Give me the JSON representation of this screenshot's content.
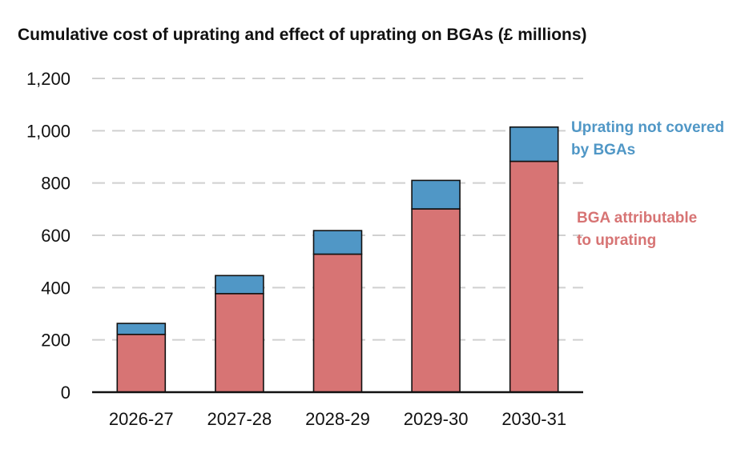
{
  "chart_data": {
    "type": "bar",
    "stacked": true,
    "title": "Cumulative cost of uprating and effect of uprating on BGAs (£ millions)",
    "xlabel": "",
    "ylabel": "",
    "categories": [
      "2026-27",
      "2027-28",
      "2028-29",
      "2029-30",
      "2030-31"
    ],
    "ylim": [
      0,
      1200
    ],
    "yticks": [
      0,
      200,
      400,
      600,
      800,
      1000,
      1200
    ],
    "ytick_labels": [
      "0",
      "200",
      "400",
      "600",
      "800",
      "1,000",
      "1,200"
    ],
    "grid": "horizontal dashed",
    "legend": "right, inline labels",
    "series": [
      {
        "name": "BGA attributable to uprating",
        "label_lines": [
          "BGA attributable",
          "to uprating"
        ],
        "color": "#d77474",
        "values": [
          221,
          377,
          528,
          701,
          883
        ]
      },
      {
        "name": "Uprating not covered by BGAs",
        "label_lines": [
          "Uprating not covered",
          "by BGAs"
        ],
        "color": "#5097c6",
        "values": [
          42,
          69,
          90,
          109,
          131
        ]
      }
    ]
  }
}
